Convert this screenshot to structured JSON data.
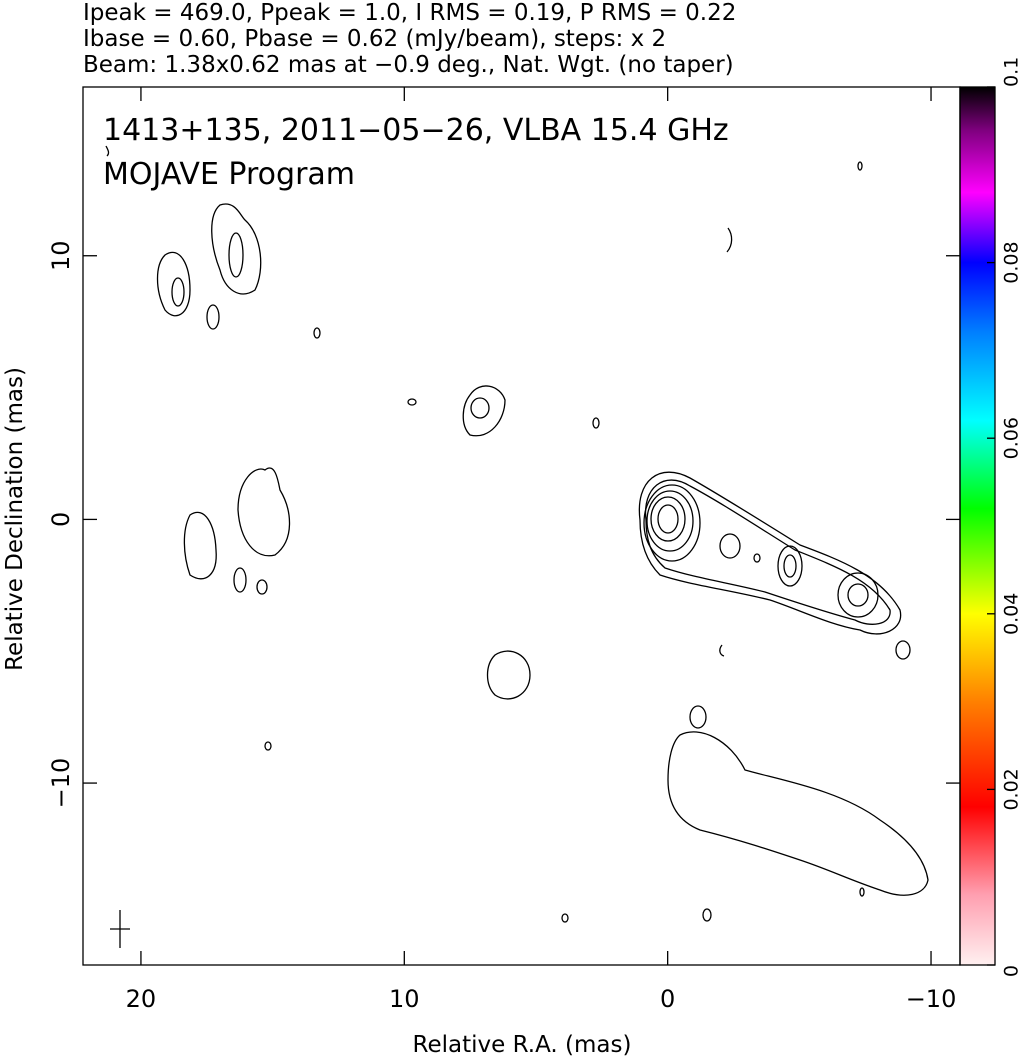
{
  "chart_data": {
    "type": "contour",
    "header": [
      "Ipeak = 469.0, Ppeak = 1.0, I RMS = 0.19, P RMS = 0.22",
      "Ibase = 0.60, Pbase = 0.62 (mJy/beam), steps: x 2",
      "Beam: 1.38x0.62 mas at −0.9 deg., Nat. Wgt. (no taper)"
    ],
    "title": "1413+135, 2011−05−26, VLBA 15.4 GHz",
    "subtitle": "MOJAVE Program",
    "xlabel": "Relative R.A. (mas)",
    "ylabel": "Relative Declination (mas)",
    "xlim": [
      22.2,
      -11.1
    ],
    "xticks": [
      20,
      10,
      0,
      {
        "value": -10,
        "label": "−10"
      }
    ],
    "ylim": [
      -16.9,
      16.4
    ],
    "yticks": [
      {
        "value": -10,
        "label": "−10"
      },
      0,
      10
    ],
    "colorbar_lim": [
      0,
      0.1
    ],
    "colorbar_ticks": [
      0,
      0.02,
      0.04,
      0.06,
      0.08,
      0.1
    ]
  }
}
